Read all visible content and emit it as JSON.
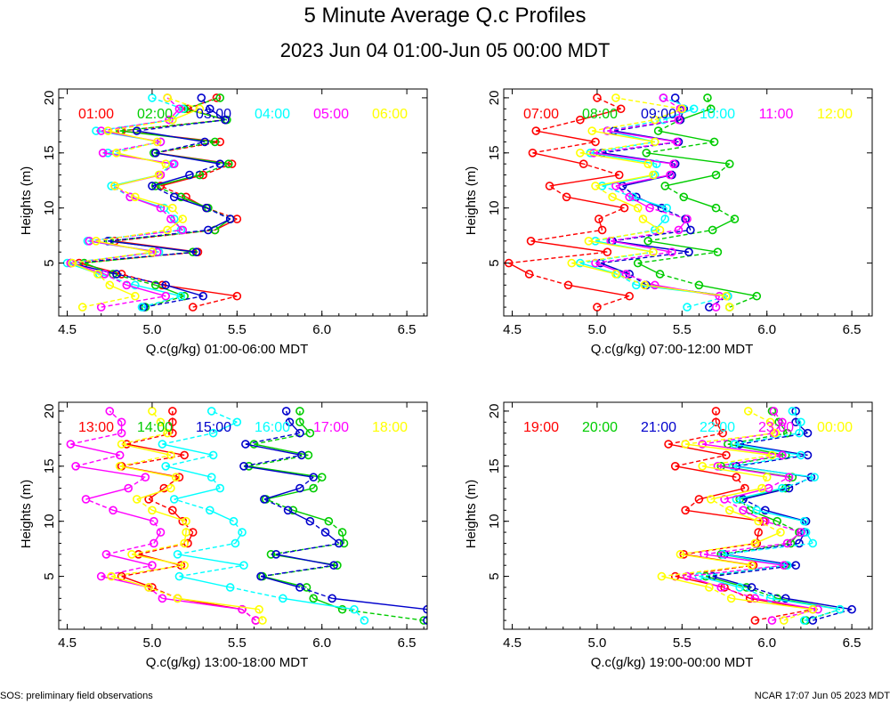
{
  "title": "5 Minute Average Q.c Profiles",
  "subtitle": "2023 Jun 04 01:00-Jun 05 00:00 MDT",
  "footer_left": "SOS: preliminary field observations",
  "footer_right": "NCAR 17:07 Jun 05 2023 MDT",
  "heights": [
    1,
    2,
    3,
    4,
    5,
    6,
    7,
    8,
    9,
    10,
    11,
    12,
    13,
    14,
    15,
    16,
    17,
    18,
    19,
    20
  ],
  "chart_data": [
    {
      "type": "line",
      "xlabel": "Q.c(g/kg) 01:00-06:00 MDT",
      "ylabel": "Heights (m)",
      "xlim": [
        4.45,
        6.62
      ],
      "ylim": [
        0.2,
        20.8
      ],
      "xticks": [
        "4.5",
        "5.0",
        "5.5",
        "6.0",
        "6.5"
      ],
      "yticks": [
        "5",
        "10",
        "15",
        "20"
      ],
      "series": [
        {
          "name": "01:00",
          "color": "#ff0000",
          "values": [
            5.24,
            5.5,
            5.06,
            4.82,
            4.57,
            5.27,
            4.78,
            5.37,
            5.5,
            5.32,
            5.2,
            5.05,
            5.3,
            5.47,
            5.02,
            5.4,
            4.82,
            5.43,
            5.21,
            5.38
          ]
        },
        {
          "name": "02:00",
          "color": "#00cc00",
          "values": [
            4.96,
            5.19,
            5.02,
            4.77,
            4.6,
            5.24,
            4.75,
            5.37,
            5.46,
            5.33,
            5.17,
            5.02,
            5.28,
            5.45,
            5.01,
            5.37,
            4.81,
            5.44,
            5.19,
            5.4
          ]
        },
        {
          "name": "03:00",
          "color": "#0000cc",
          "values": [
            4.95,
            5.3,
            5.08,
            4.79,
            4.52,
            5.26,
            4.74,
            5.33,
            5.46,
            5.32,
            5.13,
            5.0,
            5.22,
            5.4,
            5.02,
            5.31,
            4.91,
            5.43,
            5.34,
            5.29
          ]
        },
        {
          "name": "04:00",
          "color": "#00ffff",
          "values": [
            4.94,
            5.17,
            4.9,
            4.69,
            4.5,
            5.04,
            4.62,
            5.17,
            5.13,
            5.07,
            4.87,
            4.76,
            5.04,
            5.12,
            4.74,
            5.05,
            4.67,
            5.12,
            5.18,
            5.0
          ]
        },
        {
          "name": "05:00",
          "color": "#ff00ff",
          "values": [
            4.7,
            5.08,
            4.85,
            4.72,
            4.52,
            5.03,
            4.63,
            5.18,
            5.11,
            5.05,
            4.87,
            4.78,
            5.05,
            5.13,
            4.71,
            5.05,
            4.7,
            5.1,
            5.16,
            5.09
          ]
        },
        {
          "name": "06:00",
          "color": "#ffff00",
          "values": [
            4.59,
            4.9,
            4.75,
            4.68,
            4.53,
            5.0,
            4.67,
            5.09,
            5.18,
            5.12,
            4.9,
            4.78,
            5.04,
            5.08,
            4.79,
            5.03,
            4.74,
            5.12,
            5.28,
            5.09
          ]
        }
      ]
    },
    {
      "type": "line",
      "xlabel": "Q.c(g/kg) 07:00-12:00 MDT",
      "ylabel": "Heights (m)",
      "xlim": [
        4.45,
        6.62
      ],
      "ylim": [
        0.2,
        20.8
      ],
      "xticks": [
        "4.5",
        "5.0",
        "5.5",
        "6.0",
        "6.5"
      ],
      "yticks": [
        "5",
        "10",
        "15",
        "20"
      ],
      "series": [
        {
          "name": "07:00",
          "color": "#ff0000",
          "values": [
            5.0,
            5.19,
            4.83,
            4.6,
            4.48,
            5.06,
            4.61,
            5.03,
            5.01,
            5.16,
            4.82,
            4.72,
            5.13,
            4.92,
            4.62,
            4.99,
            4.64,
            4.9,
            5.14,
            5.0
          ]
        },
        {
          "name": "08:00",
          "color": "#00cc00",
          "values": [
            5.78,
            5.94,
            5.6,
            5.37,
            5.24,
            5.71,
            5.3,
            5.68,
            5.81,
            5.7,
            5.51,
            5.4,
            5.7,
            5.78,
            5.29,
            5.69,
            5.36,
            5.49,
            5.67,
            5.65
          ]
        },
        {
          "name": "09:00",
          "color": "#0000cc",
          "values": [
            5.66,
            5.77,
            5.29,
            5.19,
            5.02,
            5.54,
            5.09,
            5.55,
            5.52,
            5.38,
            5.23,
            5.15,
            5.44,
            5.46,
            5.03,
            5.48,
            5.1,
            5.49,
            5.51,
            5.46
          ]
        },
        {
          "name": "10:00",
          "color": "#00ffff",
          "values": [
            5.53,
            5.77,
            5.23,
            5.12,
            4.9,
            5.33,
            4.99,
            5.34,
            5.4,
            5.41,
            5.21,
            5.03,
            5.34,
            5.35,
            4.96,
            5.34,
            5.06,
            5.39,
            5.57,
            5.39
          ]
        },
        {
          "name": "11:00",
          "color": "#ff00ff",
          "values": [
            5.7,
            5.72,
            5.34,
            5.17,
            4.99,
            5.44,
            5.08,
            5.48,
            5.53,
            5.31,
            5.19,
            5.11,
            5.43,
            5.45,
            4.98,
            5.47,
            5.06,
            5.48,
            5.49,
            5.39
          ]
        },
        {
          "name": "12:00",
          "color": "#ffff00",
          "values": [
            5.78,
            5.76,
            5.28,
            5.11,
            4.85,
            5.33,
            4.95,
            5.37,
            5.27,
            5.24,
            5.09,
            4.99,
            5.33,
            5.3,
            4.9,
            5.34,
            4.97,
            5.34,
            5.5,
            5.11
          ]
        }
      ]
    },
    {
      "type": "line",
      "xlabel": "Q.c(g/kg) 13:00-18:00 MDT",
      "ylabel": "Heights (m)",
      "xlim": [
        4.45,
        6.62
      ],
      "ylim": [
        0.2,
        20.8
      ],
      "xticks": [
        "4.5",
        "5.0",
        "5.5",
        "6.0",
        "6.5"
      ],
      "yticks": [
        "5",
        "10",
        "15",
        "20"
      ],
      "series": [
        {
          "name": "13:00",
          "color": "#ff0000",
          "values": [
            5.61,
            5.53,
            5.15,
            5.0,
            4.82,
            5.17,
            4.92,
            5.21,
            5.24,
            5.18,
            5.12,
            4.98,
            5.07,
            5.16,
            4.82,
            5.19,
            4.85,
            5.12,
            5.12,
            5.12
          ]
        },
        {
          "name": "14:00",
          "color": "#00cc00",
          "values": [
            6.6,
            6.12,
            5.95,
            5.91,
            5.65,
            6.09,
            5.7,
            6.13,
            6.12,
            6.04,
            5.83,
            5.67,
            5.95,
            6.0,
            5.57,
            5.92,
            5.6,
            5.93,
            5.87,
            5.87
          ]
        },
        {
          "name": "15:00",
          "color": "#0000cc",
          "values": [
            6.62,
            6.62,
            6.06,
            5.87,
            5.64,
            6.07,
            5.73,
            6.1,
            6.02,
            5.93,
            5.8,
            5.66,
            5.87,
            5.95,
            5.54,
            5.88,
            5.55,
            5.87,
            5.81,
            5.79
          ]
        },
        {
          "name": "16:00",
          "color": "#00ffff",
          "values": [
            6.25,
            6.19,
            5.77,
            5.46,
            5.16,
            5.54,
            5.15,
            5.49,
            5.53,
            5.48,
            5.34,
            5.13,
            5.4,
            5.35,
            5.08,
            5.36,
            5.06,
            5.36,
            5.5,
            5.35
          ]
        },
        {
          "name": "17:00",
          "color": "#ff00ff",
          "values": [
            5.61,
            5.53,
            5.06,
            4.98,
            4.7,
            5.0,
            4.73,
            5.01,
            5.05,
            5.01,
            4.77,
            4.61,
            4.86,
            4.96,
            4.55,
            4.81,
            4.52,
            4.82,
            4.82,
            4.75
          ]
        },
        {
          "name": "18:00",
          "color": "#ffff00",
          "values": [
            5.65,
            5.63,
            5.15,
            4.98,
            4.76,
            5.19,
            4.88,
            5.19,
            5.2,
            5.2,
            5.0,
            4.91,
            5.11,
            5.14,
            4.81,
            5.11,
            4.82,
            5.09,
            5.05,
            5.0
          ]
        }
      ]
    },
    {
      "type": "line",
      "xlabel": "Q.c(g/kg) 19:00-00:00 MDT",
      "ylabel": "Heights (m)",
      "xlim": [
        4.45,
        6.62
      ],
      "ylim": [
        0.2,
        20.8
      ],
      "xticks": [
        "4.5",
        "5.0",
        "5.5",
        "6.0",
        "6.5"
      ],
      "yticks": [
        "5",
        "10",
        "15",
        "20"
      ],
      "series": [
        {
          "name": "19:00",
          "color": "#ff0000",
          "values": [
            5.93,
            6.27,
            5.9,
            5.75,
            5.46,
            5.92,
            5.51,
            5.94,
            5.95,
            5.98,
            5.52,
            5.6,
            5.87,
            5.82,
            5.46,
            5.76,
            5.42,
            5.74,
            5.7,
            5.7
          ]
        },
        {
          "name": "20:00",
          "color": "#00cc00",
          "values": [
            6.23,
            6.43,
            6.06,
            5.88,
            5.64,
            6.11,
            5.73,
            6.14,
            6.19,
            6.06,
            5.9,
            5.84,
            6.11,
            6.15,
            5.73,
            6.11,
            5.77,
            6.12,
            6.07,
            6.03
          ]
        },
        {
          "name": "21:00",
          "color": "#0000cc",
          "values": [
            6.27,
            6.5,
            6.11,
            5.91,
            5.68,
            6.17,
            5.75,
            6.19,
            6.22,
            6.23,
            5.99,
            5.86,
            6.13,
            6.26,
            5.82,
            6.24,
            5.84,
            6.24,
            6.17,
            6.17
          ]
        },
        {
          "name": "22:00",
          "color": "#00ffff",
          "values": [
            6.22,
            6.43,
            6.02,
            5.84,
            5.6,
            6.12,
            5.74,
            6.27,
            6.23,
            6.22,
            5.94,
            5.82,
            6.09,
            6.28,
            5.8,
            6.2,
            5.81,
            6.19,
            6.2,
            6.15
          ]
        },
        {
          "name": "23:00",
          "color": "#ff00ff",
          "values": [
            6.03,
            6.3,
            5.93,
            5.73,
            5.53,
            6.1,
            5.63,
            6.12,
            6.2,
            5.99,
            5.86,
            5.75,
            6.01,
            6.13,
            5.71,
            6.09,
            5.62,
            6.04,
            6.09,
            6.04
          ]
        },
        {
          "name": "00:00",
          "color": "#ffff00",
          "values": [
            6.1,
            6.27,
            5.79,
            5.66,
            5.38,
            5.91,
            5.49,
            5.93,
            6.08,
            5.95,
            5.78,
            5.67,
            5.97,
            6.0,
            5.62,
            6.03,
            5.52,
            6.05,
            6.02,
            5.89
          ]
        }
      ]
    }
  ]
}
